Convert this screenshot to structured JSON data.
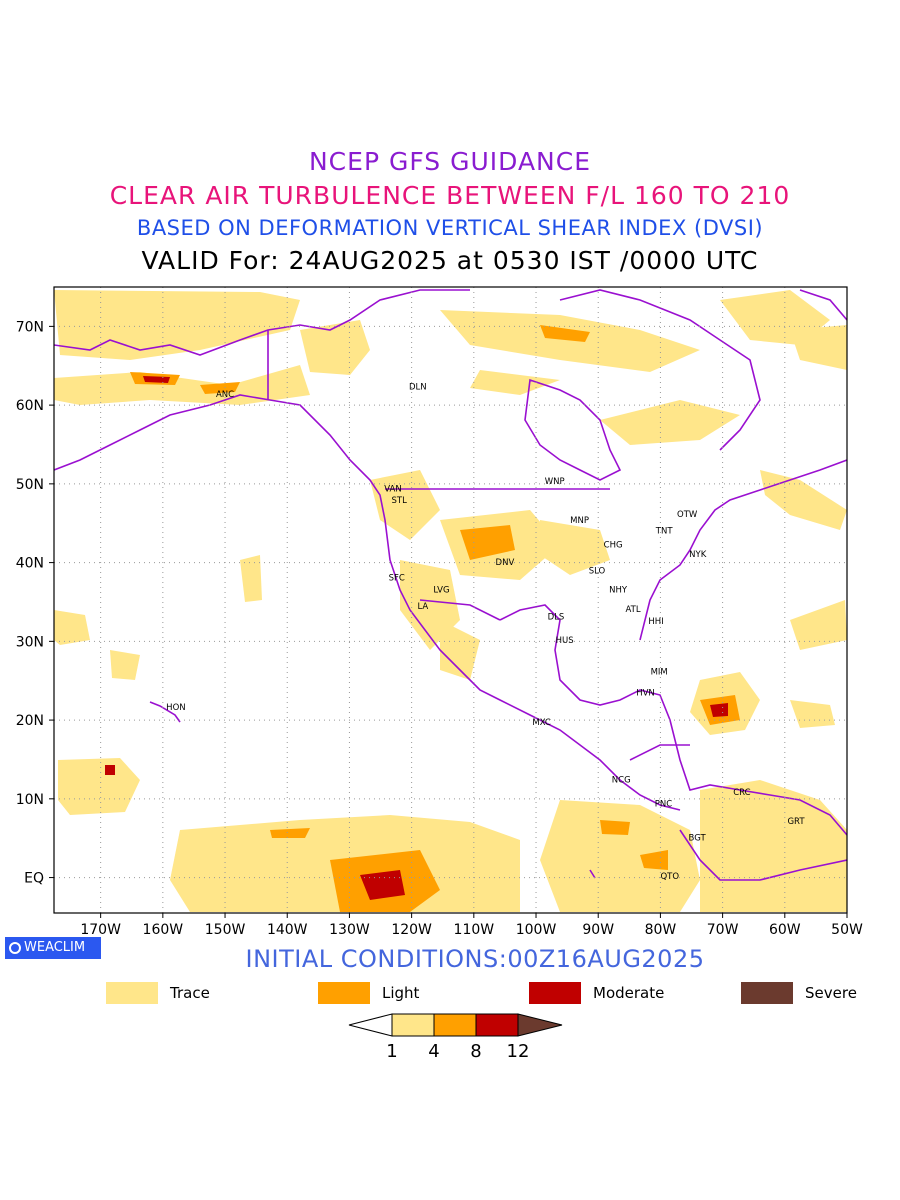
{
  "titles": {
    "line1": "NCEP GFS GUIDANCE",
    "line2": "CLEAR AIR TURBULENCE BETWEEN F/L 160 TO 210",
    "line3": "BASED ON DEFORMATION VERTICAL SHEAR INDEX (DVSI)",
    "line4": "VALID For: 24AUG2025 at 0530 IST /0000 UTC"
  },
  "colors": {
    "title1": "#8a1cd0",
    "title2": "#e8147a",
    "title3": "#1f4fe8",
    "init": "#4466dd",
    "coast": "#9a10d0",
    "trace": "#ffe68a",
    "light": "#ffa000",
    "moderate": "#c00000",
    "severe": "#6b3a2e"
  },
  "map": {
    "x_axis_labels": [
      "170W",
      "160W",
      "150W",
      "140W",
      "130W",
      "120W",
      "110W",
      "100W",
      "90W",
      "80W",
      "70W",
      "60W",
      "50W"
    ],
    "y_axis_labels": [
      "70N",
      "60N",
      "50N",
      "40N",
      "30N",
      "20N",
      "10N",
      "EQ"
    ],
    "stations": [
      {
        "code": "DLN",
        "lon": -119,
        "lat": 62
      },
      {
        "code": "ANC",
        "lon": -150,
        "lat": 61
      },
      {
        "code": "VAN",
        "lon": -123,
        "lat": 49
      },
      {
        "code": "STL",
        "lon": -122,
        "lat": 47.6
      },
      {
        "code": "WNP",
        "lon": -97,
        "lat": 50
      },
      {
        "code": "MNP",
        "lon": -93,
        "lat": 45
      },
      {
        "code": "OTW",
        "lon": -75.7,
        "lat": 45.8
      },
      {
        "code": "TNT",
        "lon": -79.4,
        "lat": 43.7
      },
      {
        "code": "CHG",
        "lon": -87.6,
        "lat": 41.9
      },
      {
        "code": "NYK",
        "lon": -74,
        "lat": 40.7
      },
      {
        "code": "DNV",
        "lon": -105,
        "lat": 39.7
      },
      {
        "code": "SFC",
        "lon": -122.4,
        "lat": 37.7
      },
      {
        "code": "LVG",
        "lon": -115.2,
        "lat": 36.2
      },
      {
        "code": "SLO",
        "lon": -90.2,
        "lat": 38.6
      },
      {
        "code": "NHY",
        "lon": -86.8,
        "lat": 36.2
      },
      {
        "code": "LA",
        "lon": -118.2,
        "lat": 34.1
      },
      {
        "code": "ATL",
        "lon": -84.4,
        "lat": 33.7
      },
      {
        "code": "DLS",
        "lon": -96.8,
        "lat": 32.8
      },
      {
        "code": "HHI",
        "lon": -80.7,
        "lat": 32.2
      },
      {
        "code": "HUS",
        "lon": -95.4,
        "lat": 29.8
      },
      {
        "code": "MIM",
        "lon": -80.2,
        "lat": 25.8
      },
      {
        "code": "HVN",
        "lon": -82.4,
        "lat": 23.1
      },
      {
        "code": "HON",
        "lon": -157.9,
        "lat": 21.3
      },
      {
        "code": "MXC",
        "lon": -99.1,
        "lat": 19.4
      },
      {
        "code": "NCG",
        "lon": -86.3,
        "lat": 12.1
      },
      {
        "code": "PNC",
        "lon": -79.5,
        "lat": 9.0
      },
      {
        "code": "CRC",
        "lon": -66.9,
        "lat": 10.5
      },
      {
        "code": "GRT",
        "lon": -58.2,
        "lat": 6.8
      },
      {
        "code": "BGT",
        "lon": -74.1,
        "lat": 4.7
      },
      {
        "code": "QTO",
        "lon": -78.5,
        "lat": -0.2
      }
    ]
  },
  "initial_conditions": "INITIAL CONDITIONS:00Z16AUG2025",
  "badge": "WEACLIM",
  "legend": [
    {
      "label": "Trace",
      "color": "#ffe68a"
    },
    {
      "label": "Light",
      "color": "#ffa000"
    },
    {
      "label": "Moderate",
      "color": "#c00000"
    },
    {
      "label": "Severe",
      "color": "#6b3a2e"
    }
  ],
  "colorbar": {
    "labels": [
      "1",
      "4",
      "8",
      "12"
    ],
    "colors": [
      "#ffffff",
      "#ffe68a",
      "#ffa000",
      "#c00000",
      "#6b3a2e"
    ]
  }
}
